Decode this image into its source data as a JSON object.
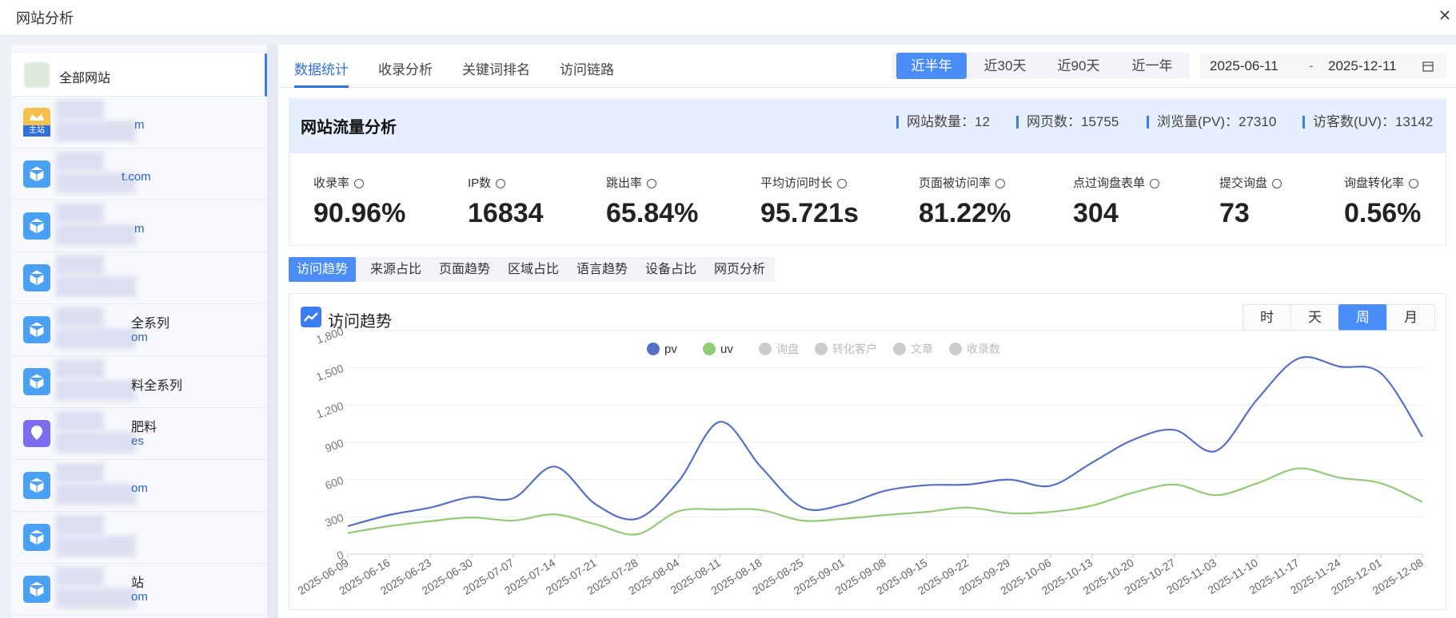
{
  "header": {
    "title": "网站分析"
  },
  "sidebar": {
    "items": [
      {
        "name": "全部网站",
        "icon": "site"
      },
      {
        "badge": "主站",
        "domain": "m",
        "icon": "crown"
      },
      {
        "domain": "t.com",
        "icon": "cube"
      },
      {
        "domain": "m",
        "icon": "cube"
      },
      {
        "icon": "cube"
      },
      {
        "name": "全系列",
        "domain": "om",
        "icon": "cube"
      },
      {
        "name": "料全系列",
        "icon": "cube"
      },
      {
        "name": "肥料",
        "domain": "es",
        "icon": "pin"
      },
      {
        "domain": "om",
        "icon": "cube"
      },
      {
        "icon": "cube"
      },
      {
        "name": "站",
        "domain": "om",
        "icon": "cube"
      }
    ],
    "active": 0
  },
  "tabs": {
    "items": [
      "数据统计",
      "收录分析",
      "关键词排名",
      "访问链路"
    ],
    "active": 0
  },
  "range_buttons": {
    "items": [
      "近半年",
      "近30天",
      "近90天",
      "近一年"
    ],
    "active": 0
  },
  "date_range": {
    "start": "2025-06-11",
    "separator": "-",
    "end": "2025-12-11"
  },
  "summary": {
    "title": "网站流量分析",
    "stats": [
      {
        "label": "网站数量：",
        "value": 12
      },
      {
        "label": "网页数：",
        "value": 15755
      },
      {
        "label": "浏览量(PV)：",
        "value": 27310
      },
      {
        "label": "访客数(UV)：",
        "value": 13142
      }
    ]
  },
  "metrics": [
    {
      "label": "收录率",
      "value": "90.96%"
    },
    {
      "label": "IP数",
      "value": "16834"
    },
    {
      "label": "跳出率",
      "value": "65.84%"
    },
    {
      "label": "平均访问时长",
      "value": "95.721s"
    },
    {
      "label": "页面被访问率",
      "value": "81.22%"
    },
    {
      "label": "点过询盘表单",
      "value": "304"
    },
    {
      "label": "提交询盘",
      "value": "73"
    },
    {
      "label": "询盘转化率",
      "value": "0.56%"
    }
  ],
  "sub_tabs": {
    "items": [
      "访问趋势",
      "来源占比",
      "页面趋势",
      "区域占比",
      "语言趋势",
      "设备占比",
      "网页分析"
    ],
    "active": 0
  },
  "chart_data": {
    "type": "line",
    "title": "访问趋势",
    "smooth": true,
    "grid": true,
    "granularity": {
      "items": [
        "时",
        "天",
        "周",
        "月"
      ],
      "active": 2
    },
    "x": [
      "2025-06-09",
      "2025-06-16",
      "2025-06-23",
      "2025-06-30",
      "2025-07-07",
      "2025-07-14",
      "2025-07-21",
      "2025-07-28",
      "2025-08-04",
      "2025-08-11",
      "2025-08-18",
      "2025-08-25",
      "2025-09-01",
      "2025-09-08",
      "2025-09-15",
      "2025-09-22",
      "2025-09-29",
      "2025-10-06",
      "2025-10-13",
      "2025-10-20",
      "2025-10-27",
      "2025-11-03",
      "2025-11-10",
      "2025-11-17",
      "2025-11-24",
      "2025-12-01",
      "2025-12-08"
    ],
    "series": [
      {
        "name": "pv",
        "color": "#5470c6",
        "visible": true,
        "values": [
          225,
          315,
          375,
          460,
          450,
          705,
          400,
          285,
          585,
          1065,
          700,
          375,
          400,
          510,
          555,
          560,
          600,
          550,
          735,
          920,
          1000,
          830,
          1245,
          1575,
          1510,
          1455,
          945
        ]
      },
      {
        "name": "uv",
        "color": "#91cc75",
        "visible": true,
        "values": [
          170,
          225,
          265,
          295,
          270,
          320,
          240,
          160,
          345,
          360,
          355,
          270,
          285,
          315,
          340,
          375,
          330,
          340,
          390,
          495,
          560,
          475,
          570,
          690,
          615,
          570,
          420
        ]
      },
      {
        "name": "询盘",
        "color": "#cccccc",
        "visible": false
      },
      {
        "name": "转化客户",
        "color": "#cccccc",
        "visible": false
      },
      {
        "name": "文章",
        "color": "#cccccc",
        "visible": false
      },
      {
        "name": "收录数",
        "color": "#cccccc",
        "visible": false
      }
    ],
    "ylim": [
      0,
      1800
    ],
    "yticks": [
      0,
      300,
      600,
      900,
      {
        "value": 1200,
        "label": "1,200"
      },
      {
        "value": 1500,
        "label": "1,500"
      },
      {
        "value": 1800,
        "label": "1,800"
      }
    ]
  }
}
